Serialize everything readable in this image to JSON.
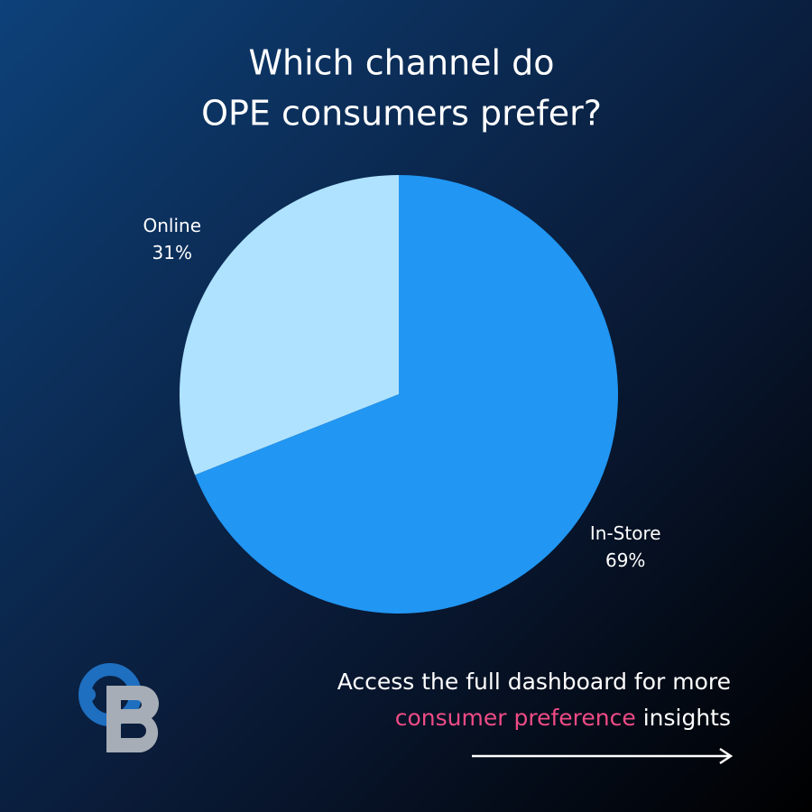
{
  "chart_data": {
    "type": "pie",
    "title": [
      "Which channel do",
      "OPE consumers prefer?"
    ],
    "categories": [
      "Online",
      "In-Store"
    ],
    "values": [
      31,
      69
    ],
    "value_labels": [
      "31%",
      "69%"
    ],
    "colors": [
      "#aee2fe",
      "#2196f3"
    ]
  },
  "footer": {
    "line1": "Access the full dashboard for more",
    "highlight": "consumer preference",
    "rest": "insights"
  }
}
